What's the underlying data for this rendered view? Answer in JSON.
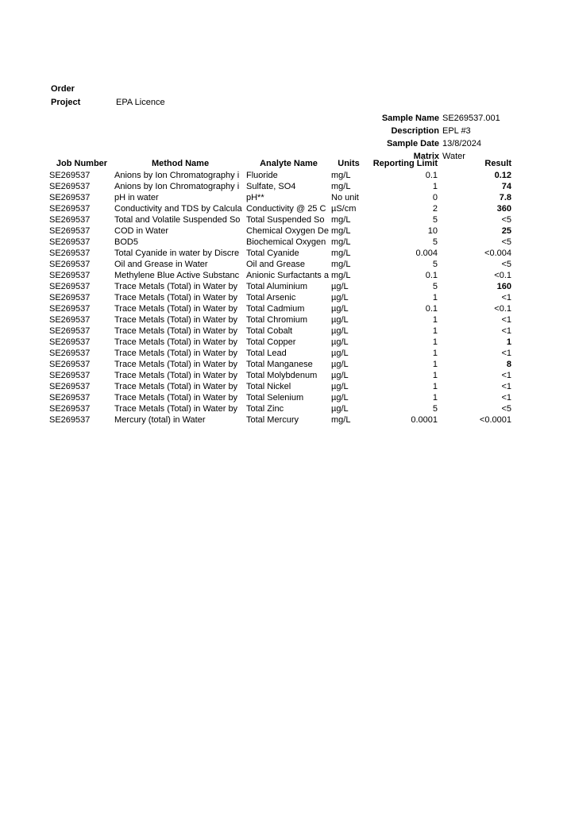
{
  "header": {
    "order_label": "Order",
    "order_value": "",
    "project_label": "Project",
    "project_value": "EPA Licence"
  },
  "sample_info": {
    "fields": [
      {
        "label": "Sample Name",
        "value": "SE269537.001"
      },
      {
        "label": "Description",
        "value": "EPL #3"
      },
      {
        "label": "Sample Date",
        "value": "13/8/2024"
      },
      {
        "label": "Matrix",
        "value": "Water"
      }
    ]
  },
  "results_table": {
    "columns": [
      "Job Number",
      "Method Name",
      "Analyte Name",
      "Units",
      "Reporting Limit",
      "Result"
    ],
    "rows": [
      {
        "job": "SE269537",
        "method": "Anions by Ion Chromatography i",
        "analyte": "Fluoride",
        "units": "mg/L",
        "limit": "0.1",
        "result": "0.12",
        "bold": true
      },
      {
        "job": "SE269537",
        "method": "Anions by Ion Chromatography i",
        "analyte": "Sulfate, SO4",
        "units": "mg/L",
        "limit": "1",
        "result": "74",
        "bold": true
      },
      {
        "job": "SE269537",
        "method": "pH in water",
        "analyte": "pH**",
        "units": "No unit",
        "limit": "0",
        "result": "7.8",
        "bold": true
      },
      {
        "job": "SE269537",
        "method": "Conductivity and TDS by Calcula",
        "analyte": "Conductivity @ 25 C",
        "units": "µS/cm",
        "limit": "2",
        "result": "360",
        "bold": true
      },
      {
        "job": "SE269537",
        "method": "Total and Volatile Suspended So",
        "analyte": "Total Suspended So",
        "units": "mg/L",
        "limit": "5",
        "result": "<5",
        "bold": false
      },
      {
        "job": "SE269537",
        "method": "COD in Water",
        "analyte": "Chemical Oxygen De",
        "units": "mg/L",
        "limit": "10",
        "result": "25",
        "bold": true
      },
      {
        "job": "SE269537",
        "method": "BOD5",
        "analyte": "Biochemical Oxygen",
        "units": "mg/L",
        "limit": "5",
        "result": "<5",
        "bold": false
      },
      {
        "job": "SE269537",
        "method": "Total Cyanide in water by Discre",
        "analyte": "Total Cyanide",
        "units": "mg/L",
        "limit": "0.004",
        "result": "<0.004",
        "bold": false
      },
      {
        "job": "SE269537",
        "method": "Oil and Grease in Water",
        "analyte": "Oil and Grease",
        "units": "mg/L",
        "limit": "5",
        "result": "<5",
        "bold": false
      },
      {
        "job": "SE269537",
        "method": "Methylene Blue Active Substanc",
        "analyte": "Anionic Surfactants a",
        "units": "mg/L",
        "limit": "0.1",
        "result": "<0.1",
        "bold": false
      },
      {
        "job": "SE269537",
        "method": "Trace Metals (Total) in Water by",
        "analyte": "Total Aluminium",
        "units": "µg/L",
        "limit": "5",
        "result": "160",
        "bold": true
      },
      {
        "job": "SE269537",
        "method": "Trace Metals (Total) in Water by",
        "analyte": "Total Arsenic",
        "units": "µg/L",
        "limit": "1",
        "result": "<1",
        "bold": false
      },
      {
        "job": "SE269537",
        "method": "Trace Metals (Total) in Water by",
        "analyte": "Total Cadmium",
        "units": "µg/L",
        "limit": "0.1",
        "result": "<0.1",
        "bold": false
      },
      {
        "job": "SE269537",
        "method": "Trace Metals (Total) in Water by",
        "analyte": "Total Chromium",
        "units": "µg/L",
        "limit": "1",
        "result": "<1",
        "bold": false
      },
      {
        "job": "SE269537",
        "method": "Trace Metals (Total) in Water by",
        "analyte": "Total Cobalt",
        "units": "µg/L",
        "limit": "1",
        "result": "<1",
        "bold": false
      },
      {
        "job": "SE269537",
        "method": "Trace Metals (Total) in Water by",
        "analyte": "Total Copper",
        "units": "µg/L",
        "limit": "1",
        "result": "1",
        "bold": true
      },
      {
        "job": "SE269537",
        "method": "Trace Metals (Total) in Water by",
        "analyte": "Total Lead",
        "units": "µg/L",
        "limit": "1",
        "result": "<1",
        "bold": false
      },
      {
        "job": "SE269537",
        "method": "Trace Metals (Total) in Water by",
        "analyte": "Total Manganese",
        "units": "µg/L",
        "limit": "1",
        "result": "8",
        "bold": true
      },
      {
        "job": "SE269537",
        "method": "Trace Metals (Total) in Water by",
        "analyte": "Total Molybdenum",
        "units": "µg/L",
        "limit": "1",
        "result": "<1",
        "bold": false
      },
      {
        "job": "SE269537",
        "method": "Trace Metals (Total) in Water by",
        "analyte": "Total Nickel",
        "units": "µg/L",
        "limit": "1",
        "result": "<1",
        "bold": false
      },
      {
        "job": "SE269537",
        "method": "Trace Metals (Total) in Water by",
        "analyte": "Total Selenium",
        "units": "µg/L",
        "limit": "1",
        "result": "<1",
        "bold": false
      },
      {
        "job": "SE269537",
        "method": "Trace Metals (Total) in Water by",
        "analyte": "Total Zinc",
        "units": "µg/L",
        "limit": "5",
        "result": "<5",
        "bold": false
      },
      {
        "job": "SE269537",
        "method": "Mercury (total) in Water",
        "analyte": "Total Mercury",
        "units": "mg/L",
        "limit": "0.0001",
        "result": "<0.0001",
        "bold": false
      }
    ]
  }
}
